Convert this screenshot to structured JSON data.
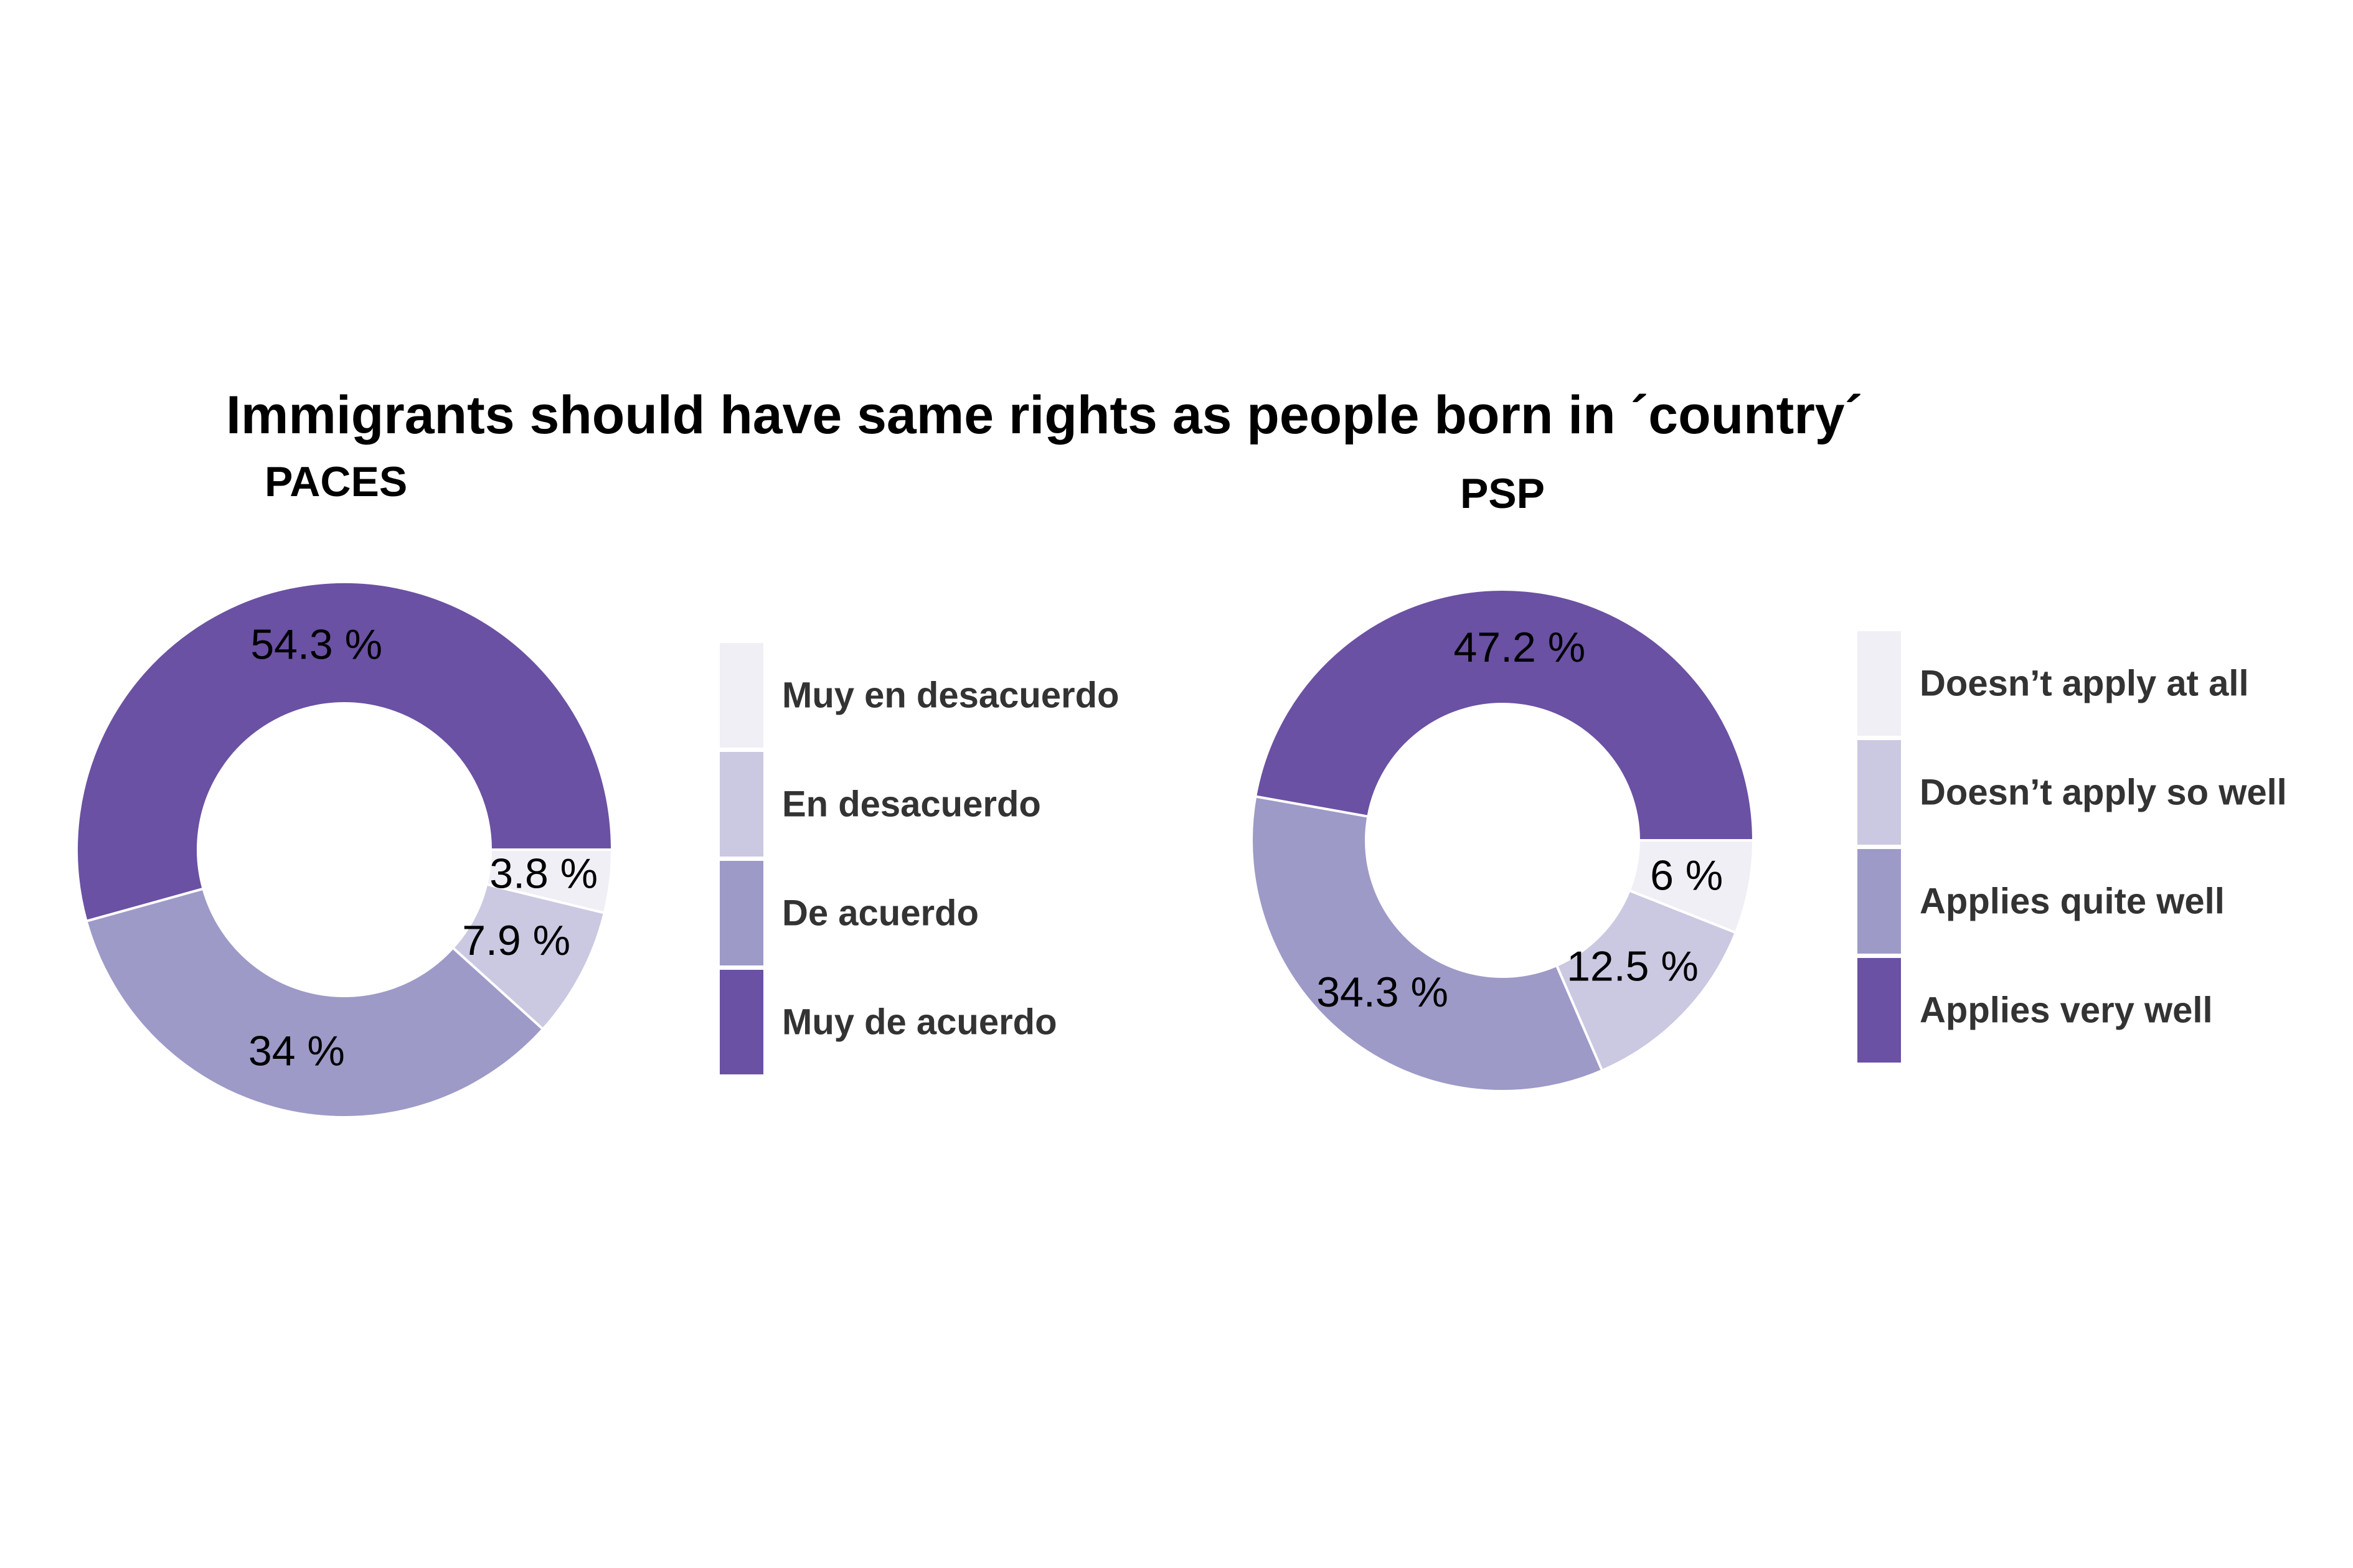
{
  "title": "Immigrants should have same rights as people born in ´country´",
  "colors": {
    "level1": "#F0EFF6",
    "level2": "#CBC8E2",
    "level3": "#9D9AC8",
    "level4": "#6A51A3"
  },
  "chart_data": [
    {
      "type": "pie",
      "donut": true,
      "subtitle": "PACES",
      "legend_position": "right",
      "categories": [
        "Muy en desacuerdo",
        "En desacuerdo",
        "De acuerdo",
        "Muy de acuerdo"
      ],
      "values": [
        3.8,
        7.9,
        34.0,
        54.3
      ],
      "labels": [
        "3.8 %",
        "7.9 %",
        "34 %",
        "54.3 %"
      ]
    },
    {
      "type": "pie",
      "donut": true,
      "subtitle": "PSP",
      "legend_position": "right",
      "categories": [
        "Doesn’t apply at all",
        "Doesn’t apply so well",
        "Applies quite well",
        "Applies very well"
      ],
      "values": [
        6.0,
        12.5,
        34.3,
        47.2
      ],
      "labels": [
        "6 %",
        "12.5 %",
        "34.3 %",
        "47.2 %"
      ]
    }
  ]
}
